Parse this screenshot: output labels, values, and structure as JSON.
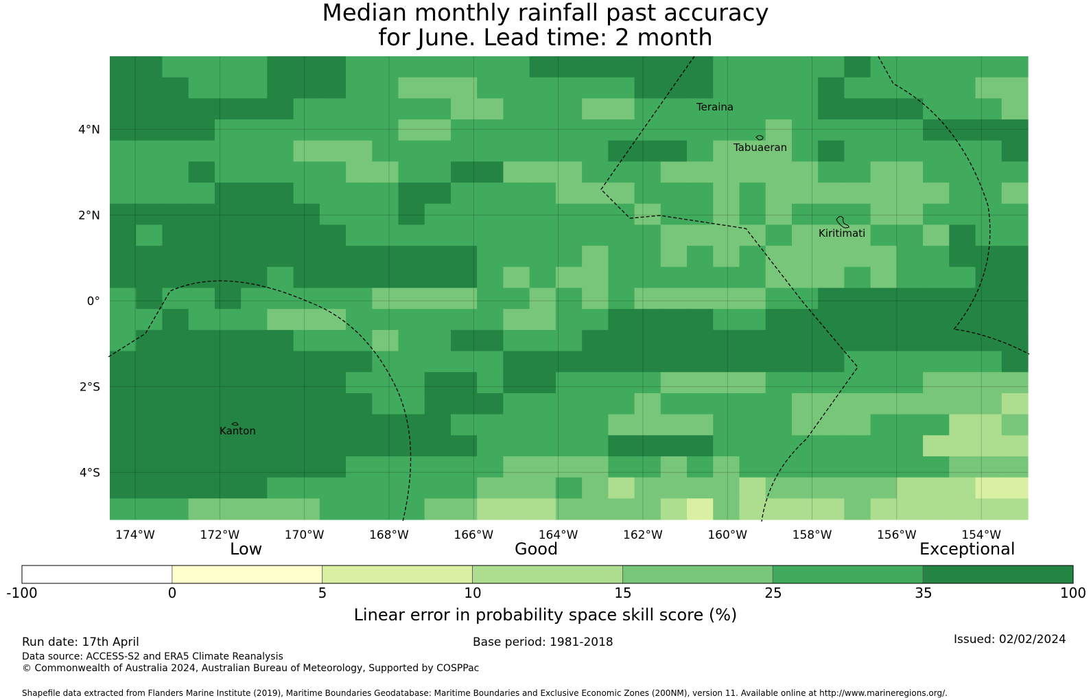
{
  "title_line1": "Median monthly rainfall past accuracy",
  "title_line2": "for June. Lead time: 2 month",
  "map": {
    "lon_range": [
      -174.6,
      -152.9
    ],
    "lat_range": [
      -5.1,
      5.7
    ],
    "lon_ticks": [
      "174°W",
      "172°W",
      "170°W",
      "168°W",
      "166°W",
      "164°W",
      "162°W",
      "160°W",
      "158°W",
      "156°W",
      "154°W"
    ],
    "lat_ticks": [
      "4°N",
      "2°N",
      "0°",
      "2°S",
      "4°S"
    ],
    "places": [
      {
        "name": "Teraina"
      },
      {
        "name": "Tabuaeran"
      },
      {
        "name": "Kiritimati"
      },
      {
        "name": "Kanton"
      }
    ]
  },
  "colors": {
    "c0": "#ffffff",
    "c1": "#ffffcc",
    "c2": "#d9f0a3",
    "c3": "#addd8e",
    "c4": "#78c679",
    "c5": "#41ab5d",
    "c6": "#238443"
  },
  "legend": {
    "categories": [
      "Low",
      "Good",
      "Exceptional"
    ],
    "boundaries": [
      "-100",
      "0",
      "5",
      "10",
      "15",
      "25",
      "35",
      "100"
    ],
    "axis_title": "Linear error in probability space skill score (%)"
  },
  "footer": {
    "run_date": "Run date: 17th April",
    "base_period": "Base period: 1981-2018",
    "issued": "Issued: 02/02/2024",
    "data_source": "Data source: ACCESS-S2 and ERA5 Climate Reanalysis",
    "copyright": "© Commonwealth of Australia 2024, Australian Bureau of Meteorology, Supported by COSPPac",
    "shapefile": "Shapefile data extracted from Flanders Marine Institute (2019), Maritime Boundaries Geodatabase: Maritime Boundaries and Exclusive Economic Zones (200NM), version 11. Available online at http://www.marineregions.org/."
  }
}
